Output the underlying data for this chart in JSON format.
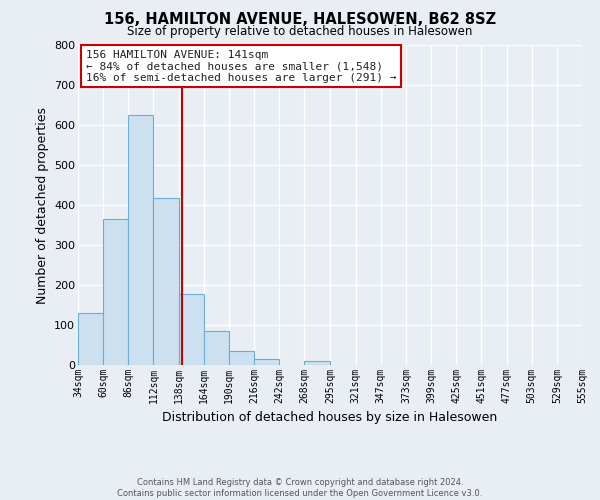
{
  "title": "156, HAMILTON AVENUE, HALESOWEN, B62 8SZ",
  "subtitle": "Size of property relative to detached houses in Halesowen",
  "xlabel": "Distribution of detached houses by size in Halesowen",
  "ylabel": "Number of detached properties",
  "bin_edges": [
    34,
    60,
    86,
    112,
    138,
    164,
    190,
    216,
    242,
    268,
    295,
    321,
    347,
    373,
    399,
    425,
    451,
    477,
    503,
    529,
    555
  ],
  "bin_heights": [
    130,
    365,
    625,
    418,
    178,
    85,
    35,
    15,
    0,
    10,
    0,
    0,
    0,
    0,
    0,
    0,
    0,
    0,
    0,
    0
  ],
  "bar_facecolor": "#cce0f0",
  "bar_edgecolor": "#6aaed6",
  "vline_x": 141,
  "vline_color": "#cc0000",
  "ylim": [
    0,
    800
  ],
  "yticks": [
    0,
    100,
    200,
    300,
    400,
    500,
    600,
    700,
    800
  ],
  "annotation_title": "156 HAMILTON AVENUE: 141sqm",
  "annotation_line1": "← 84% of detached houses are smaller (1,548)",
  "annotation_line2": "16% of semi-detached houses are larger (291) →",
  "annotation_box_color": "#cc0000",
  "annotation_text_color": "#222222",
  "footer_line1": "Contains HM Land Registry data © Crown copyright and database right 2024.",
  "footer_line2": "Contains public sector information licensed under the Open Government Licence v3.0.",
  "background_color": "#e8eef4",
  "plot_background_color": "#e8eef4",
  "grid_color": "#ffffff",
  "tick_labels": [
    "34sqm",
    "60sqm",
    "86sqm",
    "112sqm",
    "138sqm",
    "164sqm",
    "190sqm",
    "216sqm",
    "242sqm",
    "268sqm",
    "295sqm",
    "321sqm",
    "347sqm",
    "373sqm",
    "399sqm",
    "425sqm",
    "451sqm",
    "477sqm",
    "503sqm",
    "529sqm",
    "555sqm"
  ]
}
